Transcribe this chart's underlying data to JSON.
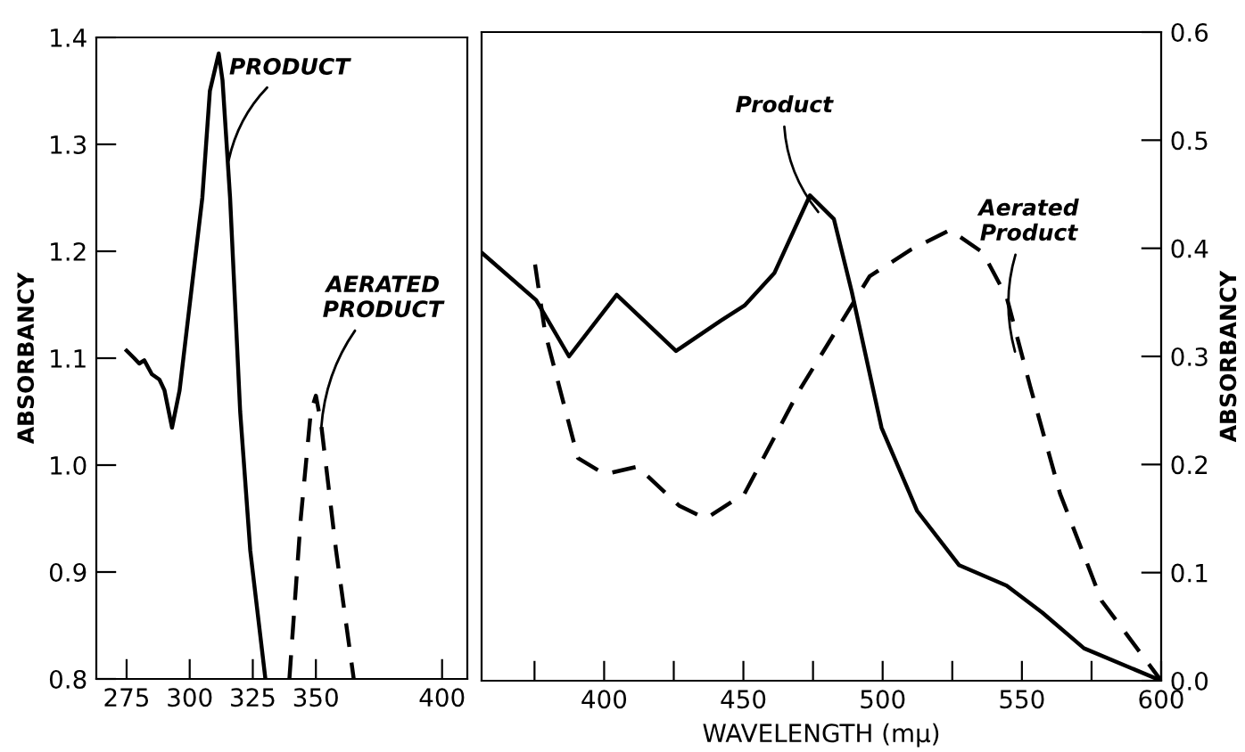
{
  "chart_data": [
    {
      "type": "line",
      "ylabel": "ABSORBANCY",
      "xlim": [
        263,
        410
      ],
      "ylim": [
        0.8,
        1.4
      ],
      "xticks": [
        275,
        300,
        325,
        350,
        400
      ],
      "yticks": [
        {
          "value": 0.8,
          "label": "0.8"
        },
        {
          "value": 0.9,
          "label": "0.9"
        },
        {
          "value": 1.0,
          "label": "1.0"
        },
        {
          "value": 1.1,
          "label": "1.1"
        },
        {
          "value": 1.2,
          "label": "1.2"
        },
        {
          "value": 1.3,
          "label": "1.3"
        },
        {
          "value": 1.4,
          "label": "1.4"
        }
      ],
      "grid": false,
      "legend": false,
      "series": [
        {
          "color": "#000000",
          "line_style": "solid",
          "x": [
            275,
            278,
            280,
            282,
            285,
            288,
            290,
            293,
            296,
            300,
            305,
            308,
            311.5,
            313,
            316,
            320,
            324,
            330
          ],
          "values": [
            1.107,
            1.1,
            1.095,
            1.098,
            1.085,
            1.08,
            1.07,
            1.035,
            1.07,
            1.15,
            1.25,
            1.35,
            1.385,
            1.36,
            1.25,
            1.05,
            0.92,
            0.8
          ]
        },
        {
          "color": "#000000",
          "line_style": "dashed",
          "x": [
            339.5,
            344,
            348,
            350,
            352,
            358,
            365
          ],
          "values": [
            0.8,
            0.95,
            1.05,
            1.065,
            1.04,
            0.92,
            0.8
          ]
        }
      ],
      "annotations": [
        {
          "text": "PRODUCT",
          "x": 315,
          "y": 1.28
        },
        {
          "text": "AERATED\nPRODUCT",
          "x": 352,
          "y": 1.03
        }
      ]
    },
    {
      "type": "line",
      "xlabel": "WAVELENGTH (mμ)",
      "ylabel": "ABSORBANCY",
      "xlim": [
        356,
        600
      ],
      "ylim": [
        0,
        0.6
      ],
      "xticks": [
        {
          "value": 375,
          "label": null
        },
        400,
        {
          "value": 425,
          "label": null
        },
        450,
        {
          "value": 475,
          "label": null
        },
        500,
        {
          "value": 525,
          "label": null
        },
        550,
        {
          "value": 575,
          "label": null
        },
        600
      ],
      "yticks": [
        {
          "value": 0,
          "label": "0.0"
        },
        0.1,
        0.2,
        0.3,
        0.4,
        0.5,
        0.6
      ],
      "grid": false,
      "legend": false,
      "series": [
        {
          "color": "#000000",
          "line_style": "solid",
          "x": [
            356,
            375.6,
            387.4,
            404.5,
            425.8,
            441.9,
            450.4,
            461.1,
            473.9,
            482.5,
            488.9,
            499.6,
            512.4,
            527.4,
            544.5,
            557.3,
            572.3,
            600
          ],
          "values": [
            0.396,
            0.352,
            0.3,
            0.357,
            0.305,
            0.333,
            0.347,
            0.377,
            0.449,
            0.427,
            0.36,
            0.234,
            0.157,
            0.107,
            0.088,
            0.063,
            0.03,
            0.0
          ]
        },
        {
          "color": "#000000",
          "line_style": "dashed",
          "x": [
            375.2,
            378.8,
            390.6,
            400.2,
            412,
            426.9,
            436.5,
            450.4,
            469.7,
            495.3,
            510.3,
            524.2,
            536,
            544.5,
            553,
            563.7,
            578.6,
            600
          ],
          "values": [
            0.385,
            0.322,
            0.206,
            0.191,
            0.198,
            0.162,
            0.15,
            0.173,
            0.267,
            0.374,
            0.399,
            0.417,
            0.396,
            0.355,
            0.272,
            0.173,
            0.074,
            0.0
          ]
        }
      ],
      "annotations": [
        {
          "text": "Product",
          "x": 478,
          "y": 0.43
        },
        {
          "text": "Aerated\nProduct",
          "x": 548,
          "y": 0.3
        }
      ]
    }
  ]
}
